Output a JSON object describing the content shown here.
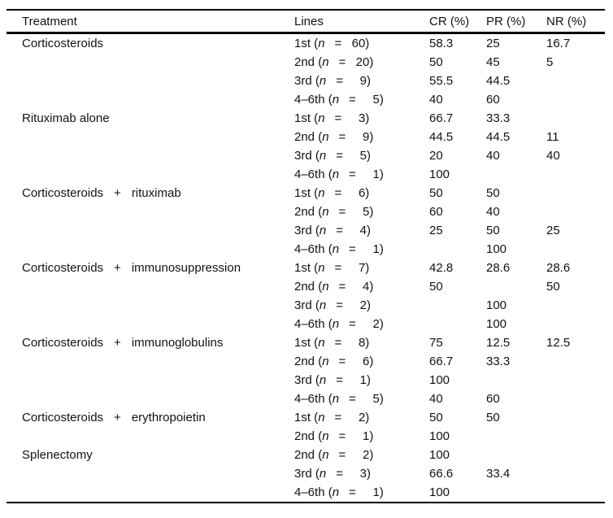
{
  "page": {
    "background": "#ffffff",
    "text_color": "#121212",
    "rule_color": "#000000"
  },
  "table": {
    "columns": [
      "Treatment",
      "Lines",
      "CR (%)",
      "PR (%)",
      "NR (%)"
    ],
    "n_symbol": "n",
    "eq_symbol": "=",
    "paren_open": "(",
    "paren_close": ")",
    "groups": [
      {
        "treatment": [
          "Corticosteroids"
        ],
        "lines": [
          {
            "ordinal": "1st",
            "n": "60",
            "cr": "58.3",
            "pr": "25",
            "nr": "16.7"
          },
          {
            "ordinal": "2nd",
            "n": "20",
            "cr": "50",
            "pr": "45",
            "nr": "5"
          },
          {
            "ordinal": "3rd",
            "n": "9",
            "cr": "55.5",
            "pr": "44.5",
            "nr": ""
          },
          {
            "ordinal": "4–6th",
            "n": "5",
            "cr": "40",
            "pr": "60",
            "nr": ""
          }
        ]
      },
      {
        "treatment": [
          "Rituximab alone"
        ],
        "lines": [
          {
            "ordinal": "1st",
            "n": "3",
            "cr": "66.7",
            "pr": "33.3",
            "nr": ""
          },
          {
            "ordinal": "2nd",
            "n": "9",
            "cr": "44.5",
            "pr": "44.5",
            "nr": "11"
          },
          {
            "ordinal": "3rd",
            "n": "5",
            "cr": "20",
            "pr": "40",
            "nr": "40"
          },
          {
            "ordinal": "4–6th",
            "n": "1",
            "cr": "100",
            "pr": "",
            "nr": ""
          }
        ]
      },
      {
        "treatment": [
          "Corticosteroids",
          "+",
          "rituximab"
        ],
        "lines": [
          {
            "ordinal": "1st",
            "n": "6",
            "cr": "50",
            "pr": "50",
            "nr": ""
          },
          {
            "ordinal": "2nd",
            "n": "5",
            "cr": "60",
            "pr": "40",
            "nr": ""
          },
          {
            "ordinal": "3rd",
            "n": "4",
            "cr": "25",
            "pr": "50",
            "nr": "25"
          },
          {
            "ordinal": "4–6th",
            "n": "1",
            "cr": "",
            "pr": "100",
            "nr": ""
          }
        ]
      },
      {
        "treatment": [
          "Corticosteroids",
          "+",
          "immunosuppression"
        ],
        "lines": [
          {
            "ordinal": "1st",
            "n": "7",
            "cr": "42.8",
            "pr": "28.6",
            "nr": "28.6"
          },
          {
            "ordinal": "2nd",
            "n": "4",
            "cr": "50",
            "pr": "",
            "nr": "50"
          },
          {
            "ordinal": "3rd",
            "n": "2",
            "cr": "",
            "pr": "100",
            "nr": ""
          },
          {
            "ordinal": "4–6th",
            "n": "2",
            "cr": "",
            "pr": "100",
            "nr": ""
          }
        ]
      },
      {
        "treatment": [
          "Corticosteroids",
          "+",
          "immunoglobulins"
        ],
        "lines": [
          {
            "ordinal": "1st",
            "n": "8",
            "cr": "75",
            "pr": "12.5",
            "nr": "12.5"
          },
          {
            "ordinal": "2nd",
            "n": "6",
            "cr": "66.7",
            "pr": "33.3",
            "nr": ""
          },
          {
            "ordinal": "3rd",
            "n": "1",
            "cr": "100",
            "pr": "",
            "nr": ""
          },
          {
            "ordinal": "4–6th",
            "n": "5",
            "cr": "40",
            "pr": "60",
            "nr": ""
          }
        ]
      },
      {
        "treatment": [
          "Corticosteroids",
          "+",
          "erythropoietin"
        ],
        "lines": [
          {
            "ordinal": "1st",
            "n": "2",
            "cr": "50",
            "pr": "50",
            "nr": ""
          },
          {
            "ordinal": "2nd",
            "n": "1",
            "cr": "100",
            "pr": "",
            "nr": ""
          }
        ]
      },
      {
        "treatment": [
          "Splenectomy"
        ],
        "lines": [
          {
            "ordinal": "2nd",
            "n": "2",
            "cr": "100",
            "pr": "",
            "nr": ""
          },
          {
            "ordinal": "3rd",
            "n": "3",
            "cr": "66.6",
            "pr": "33.4",
            "nr": ""
          },
          {
            "ordinal": "4–6th",
            "n": "1",
            "cr": "100",
            "pr": "",
            "nr": ""
          }
        ]
      }
    ]
  }
}
